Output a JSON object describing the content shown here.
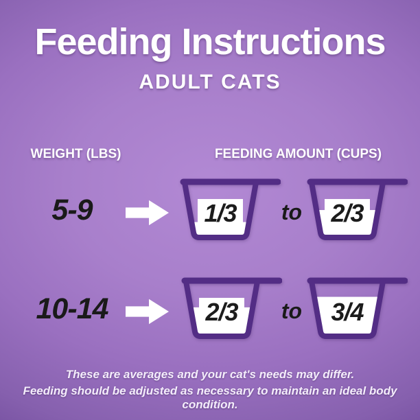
{
  "colors": {
    "background_center": "#ad84cf",
    "background_edge": "#5e3c87",
    "cup_outline": "#532d85",
    "fill_white": "#ffffff",
    "dark_text": "#1a1a1a",
    "white_text": "#ffffff"
  },
  "header": {
    "title": "Feeding Instructions",
    "subtitle": "ADULT CATS"
  },
  "table": {
    "weight_header": "WEIGHT (LBS)",
    "amount_header": "FEEDING AMOUNT (CUPS)",
    "connector": "to",
    "rows": [
      {
        "weight": "5-9",
        "min": {
          "label": "1/3",
          "fill_percent": 28
        },
        "max": {
          "label": "2/3",
          "fill_percent": 52
        }
      },
      {
        "weight": "10-14",
        "min": {
          "label": "2/3",
          "fill_percent": 55
        },
        "max": {
          "label": "3/4",
          "fill_percent": 76
        }
      }
    ]
  },
  "footer": {
    "line1": "These are averages and your cat's needs may differ.",
    "line2": "Feeding should be adjusted as necessary to maintain an ideal body condition."
  }
}
